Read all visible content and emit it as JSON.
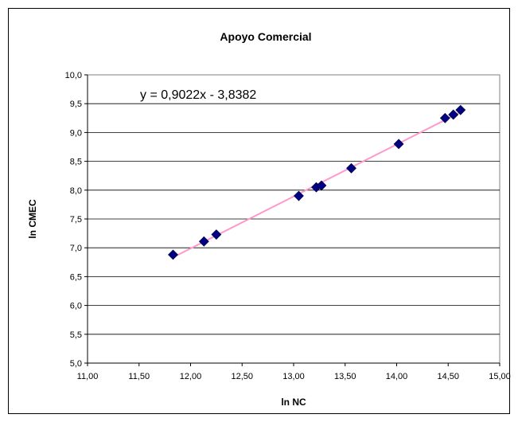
{
  "chart_data": {
    "type": "scatter",
    "title": "Apoyo Comercial",
    "xlabel": "ln NC",
    "ylabel": "ln CMEC",
    "xlim": [
      11.0,
      15.0
    ],
    "ylim": [
      5.0,
      10.0
    ],
    "x_ticks": [
      "11,00",
      "11,50",
      "12,00",
      "12,50",
      "13,00",
      "13,50",
      "14,00",
      "14,50",
      "15,00"
    ],
    "y_ticks": [
      "5,0",
      "5,5",
      "6,0",
      "6,5",
      "7,0",
      "7,5",
      "8,0",
      "8,5",
      "9,0",
      "9,5",
      "10,0"
    ],
    "grid": "horizontal",
    "legend": "none",
    "series": [
      {
        "points": [
          {
            "x": 11.83,
            "y": 6.88
          },
          {
            "x": 12.13,
            "y": 7.11
          },
          {
            "x": 12.25,
            "y": 7.23
          },
          {
            "x": 13.05,
            "y": 7.9
          },
          {
            "x": 13.22,
            "y": 8.05
          },
          {
            "x": 13.27,
            "y": 8.08
          },
          {
            "x": 13.56,
            "y": 8.38
          },
          {
            "x": 14.02,
            "y": 8.8
          },
          {
            "x": 14.47,
            "y": 9.25
          },
          {
            "x": 14.55,
            "y": 9.31
          },
          {
            "x": 14.62,
            "y": 9.39
          }
        ]
      }
    ],
    "trendline": {
      "slope": 0.9022,
      "intercept": -3.8382,
      "x_range": [
        11.83,
        14.62
      ],
      "equation": "y = 0,9022x - 3,8382"
    },
    "colors": {
      "marker": "#000080",
      "trendline": "#FF99CC",
      "plot_background": "#FFFFFF",
      "gridline": "#000000"
    }
  }
}
